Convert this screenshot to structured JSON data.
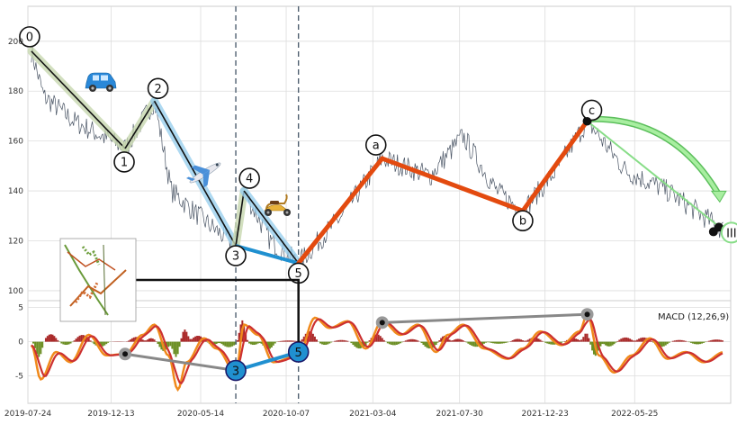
{
  "chart_data": [
    {
      "type": "line",
      "panel": "price",
      "xlim": [
        "2019-07-24",
        "2022-11-05"
      ],
      "ylim": [
        96,
        214
      ],
      "yticks": [
        100,
        120,
        140,
        160,
        180,
        200
      ],
      "grid": true,
      "vlines": [
        "2020-07-13",
        "2020-10-28"
      ],
      "impulse_waves": [
        {
          "label": "0",
          "date": "2019-07-30",
          "value": 196
        },
        {
          "label": "1",
          "date": "2020-01-06",
          "value": 157
        },
        {
          "label": "2",
          "date": "2020-02-25",
          "value": 176
        },
        {
          "label": "3",
          "date": "2020-07-13",
          "value": 118
        },
        {
          "label": "4",
          "date": "2020-07-27",
          "value": 140
        },
        {
          "label": "5",
          "date": "2020-10-28",
          "value": 111
        }
      ],
      "correction_waves": [
        {
          "label": "5",
          "date": "2020-10-28",
          "value": 111
        },
        {
          "label": "a",
          "date": "2021-03-20",
          "value": 153
        },
        {
          "label": "b",
          "date": "2021-11-15",
          "value": 132
        },
        {
          "label": "c",
          "date": "2022-03-05",
          "value": 168
        }
      ],
      "projection": {
        "label": "III",
        "date_from": "2022-03-05",
        "value_from": 168,
        "date_to": "2022-10-25",
        "value_to": 124
      },
      "icons": [
        "car-icon",
        "airplane-icon",
        "scooter-icon",
        "elliott-wave-thumbnail"
      ]
    },
    {
      "type": "line",
      "panel": "macd",
      "title": "MACD (12,26,9)",
      "ylim": [
        -9,
        6
      ],
      "yticks": [
        -5,
        0,
        5
      ],
      "xticks": [
        "2019-07-24",
        "2019-12-13",
        "2020-05-14",
        "2020-10-07",
        "2021-03-04",
        "2021-07-30",
        "2021-12-23",
        "2022-05-25"
      ],
      "markers": [
        {
          "label": "",
          "date": "2020-01-06",
          "value": -1.8
        },
        {
          "label": "3",
          "date": "2020-07-13",
          "value": -4.2
        },
        {
          "label": "5",
          "date": "2020-10-28",
          "value": -1.5
        }
      ],
      "divergence": [
        {
          "date": "2021-03-20",
          "value": 2.8
        },
        {
          "date": "2022-03-05",
          "value": 4.0
        }
      ],
      "colors": {
        "macd": "#f08a1c",
        "signal": "#cc3030",
        "hist_pos": "#aa2a2a",
        "hist_neg": "#6b8e23",
        "wave_blue": "#2090d0",
        "correction_red": "#e34a0f"
      }
    }
  ]
}
